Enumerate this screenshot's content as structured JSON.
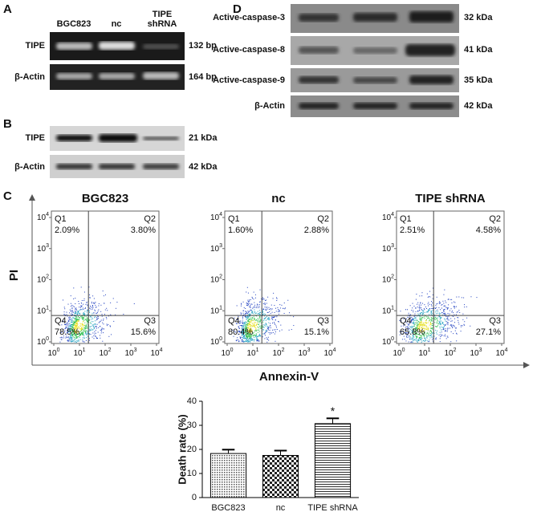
{
  "panel_a": {
    "label": "A",
    "lanes": [
      [
        "BGC823"
      ],
      [
        "nc"
      ],
      [
        "TIPE",
        "shRNA"
      ]
    ],
    "rows": [
      {
        "name": "TIPE",
        "size": "132 bp"
      },
      {
        "name": "β-Actin",
        "size": "164 bp"
      }
    ]
  },
  "panel_b": {
    "label": "B",
    "rows": [
      {
        "name": "TIPE",
        "size": "21 kDa"
      },
      {
        "name": "β-Actin",
        "size": "42 kDa"
      }
    ]
  },
  "panel_d": {
    "label": "D",
    "rows": [
      {
        "name": "Active-caspase-3",
        "size": "32 kDa"
      },
      {
        "name": "Active-caspase-8",
        "size": "41 kDa"
      },
      {
        "name": "Active-caspase-9",
        "size": "35 kDa"
      },
      {
        "name": "β-Actin",
        "size": "42 kDa"
      }
    ]
  },
  "panel_c": {
    "label": "C",
    "y_axis": "PI",
    "x_axis": "Annexin-V",
    "ticks": [
      {
        "base": "10",
        "exp": "0"
      },
      {
        "base": "10",
        "exp": "1"
      },
      {
        "base": "10",
        "exp": "2"
      },
      {
        "base": "10",
        "exp": "3"
      },
      {
        "base": "10",
        "exp": "4"
      }
    ],
    "plots": [
      {
        "title": "BGC823",
        "quadrants": [
          {
            "name": "Q1",
            "percent": "2.09%"
          },
          {
            "name": "Q2",
            "percent": "3.80%"
          },
          {
            "name": "Q3",
            "percent": "15.6%"
          },
          {
            "name": "Q4",
            "percent": "78.5%"
          }
        ]
      },
      {
        "title": "nc",
        "quadrants": [
          {
            "name": "Q1",
            "percent": "1.60%"
          },
          {
            "name": "Q2",
            "percent": "2.88%"
          },
          {
            "name": "Q3",
            "percent": "15.1%"
          },
          {
            "name": "Q4",
            "percent": "80.4%"
          }
        ]
      },
      {
        "title": "TIPE shRNA",
        "quadrants": [
          {
            "name": "Q1",
            "percent": "2.51%"
          },
          {
            "name": "Q2",
            "percent": "4.58%"
          },
          {
            "name": "Q3",
            "percent": "27.1%"
          },
          {
            "name": "Q4",
            "percent": "65.8%"
          }
        ]
      }
    ]
  },
  "chart_data": {
    "type": "bar",
    "ylabel": "Death rate (%)",
    "categories": [
      "BGC823",
      "nc",
      "TIPE shRNA"
    ],
    "values": [
      18.3,
      17.5,
      30.7
    ],
    "errors": [
      1.6,
      2.0,
      2.2
    ],
    "patterns": [
      "dots",
      "checker",
      "stripes"
    ],
    "annotation": "*",
    "ylim": [
      0,
      40
    ],
    "yticks": [
      0,
      10,
      20,
      30,
      40
    ]
  }
}
